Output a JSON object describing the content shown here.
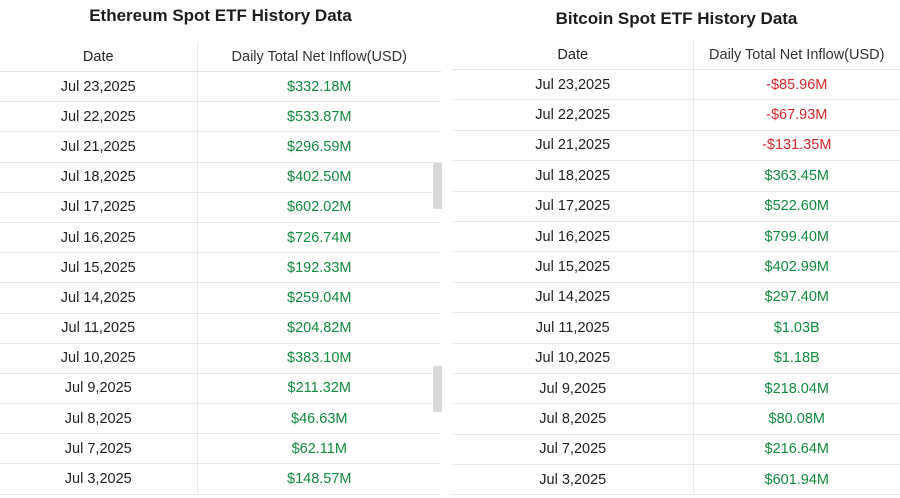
{
  "ethereum": {
    "title": "Ethereum Spot ETF History Data",
    "headers": {
      "date": "Date",
      "flow": "Daily Total Net Inflow(USD)"
    },
    "rows": [
      {
        "date": "Jul 23,2025",
        "flow": "$332.18M",
        "sign": "pos"
      },
      {
        "date": "Jul 22,2025",
        "flow": "$533.87M",
        "sign": "pos"
      },
      {
        "date": "Jul 21,2025",
        "flow": "$296.59M",
        "sign": "pos"
      },
      {
        "date": "Jul 18,2025",
        "flow": "$402.50M",
        "sign": "pos"
      },
      {
        "date": "Jul 17,2025",
        "flow": "$602.02M",
        "sign": "pos"
      },
      {
        "date": "Jul 16,2025",
        "flow": "$726.74M",
        "sign": "pos"
      },
      {
        "date": "Jul 15,2025",
        "flow": "$192.33M",
        "sign": "pos"
      },
      {
        "date": "Jul 14,2025",
        "flow": "$259.04M",
        "sign": "pos"
      },
      {
        "date": "Jul 11,2025",
        "flow": "$204.82M",
        "sign": "pos"
      },
      {
        "date": "Jul 10,2025",
        "flow": "$383.10M",
        "sign": "pos"
      },
      {
        "date": "Jul 9,2025",
        "flow": "$211.32M",
        "sign": "pos"
      },
      {
        "date": "Jul 8,2025",
        "flow": "$46.63M",
        "sign": "pos"
      },
      {
        "date": "Jul 7,2025",
        "flow": "$62.11M",
        "sign": "pos"
      },
      {
        "date": "Jul 3,2025",
        "flow": "$148.57M",
        "sign": "pos"
      }
    ]
  },
  "bitcoin": {
    "title": "Bitcoin Spot ETF History Data",
    "headers": {
      "date": "Date",
      "flow": "Daily Total Net Inflow(USD)"
    },
    "rows": [
      {
        "date": "Jul 23,2025",
        "flow": "-$85.96M",
        "sign": "neg"
      },
      {
        "date": "Jul 22,2025",
        "flow": "-$67.93M",
        "sign": "neg"
      },
      {
        "date": "Jul 21,2025",
        "flow": "-$131.35M",
        "sign": "neg"
      },
      {
        "date": "Jul 18,2025",
        "flow": "$363.45M",
        "sign": "pos"
      },
      {
        "date": "Jul 17,2025",
        "flow": "$522.60M",
        "sign": "pos"
      },
      {
        "date": "Jul 16,2025",
        "flow": "$799.40M",
        "sign": "pos"
      },
      {
        "date": "Jul 15,2025",
        "flow": "$402.99M",
        "sign": "pos"
      },
      {
        "date": "Jul 14,2025",
        "flow": "$297.40M",
        "sign": "pos"
      },
      {
        "date": "Jul 11,2025",
        "flow": "$1.03B",
        "sign": "pos"
      },
      {
        "date": "Jul 10,2025",
        "flow": "$1.18B",
        "sign": "pos"
      },
      {
        "date": "Jul 9,2025",
        "flow": "$218.04M",
        "sign": "pos"
      },
      {
        "date": "Jul 8,2025",
        "flow": "$80.08M",
        "sign": "pos"
      },
      {
        "date": "Jul 7,2025",
        "flow": "$216.64M",
        "sign": "pos"
      },
      {
        "date": "Jul 3,2025",
        "flow": "$601.94M",
        "sign": "pos"
      }
    ]
  },
  "colors": {
    "positive": "#138a3f",
    "negative": "#d42a2a"
  }
}
